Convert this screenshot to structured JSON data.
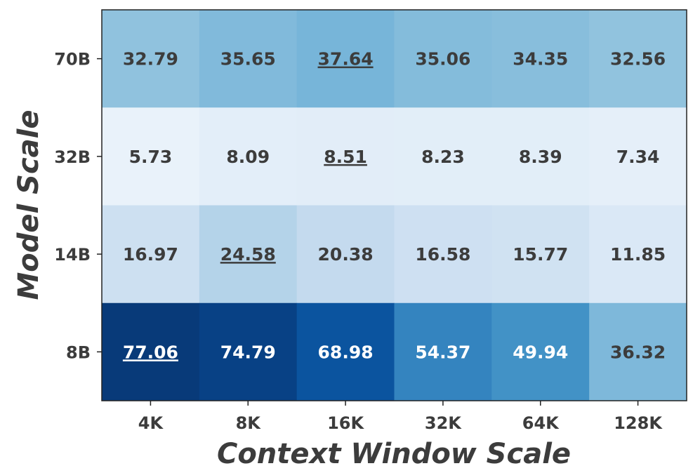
{
  "chart_data": {
    "type": "heatmap",
    "title": "",
    "xlabel": "Context Window Scale",
    "ylabel": "Model Scale",
    "x_categories": [
      "4K",
      "8K",
      "16K",
      "32K",
      "64K",
      "128K"
    ],
    "y_categories": [
      "70B",
      "32B",
      "14B",
      "8B"
    ],
    "values": [
      [
        32.79,
        35.65,
        37.64,
        35.06,
        34.35,
        32.56
      ],
      [
        5.73,
        8.09,
        8.51,
        8.23,
        8.39,
        7.34
      ],
      [
        16.97,
        24.58,
        20.38,
        16.58,
        15.77,
        11.85
      ],
      [
        77.06,
        74.79,
        68.98,
        54.37,
        49.94,
        36.32
      ]
    ],
    "labels": [
      [
        "32.79",
        "35.65",
        "37.64",
        "35.06",
        "34.35",
        "32.56"
      ],
      [
        "5.73",
        "8.09",
        "8.51",
        "8.23",
        "8.39",
        "7.34"
      ],
      [
        "16.97",
        "24.58",
        "20.38",
        "16.58",
        "15.77",
        "11.85"
      ],
      [
        "77.06",
        "74.79",
        "68.98",
        "54.37",
        "49.94",
        "36.32"
      ]
    ],
    "row_max_underlined": [
      2,
      2,
      1,
      0
    ],
    "colormap": "Blues",
    "value_range": [
      0,
      80
    ],
    "grid": false,
    "legend": "none"
  }
}
